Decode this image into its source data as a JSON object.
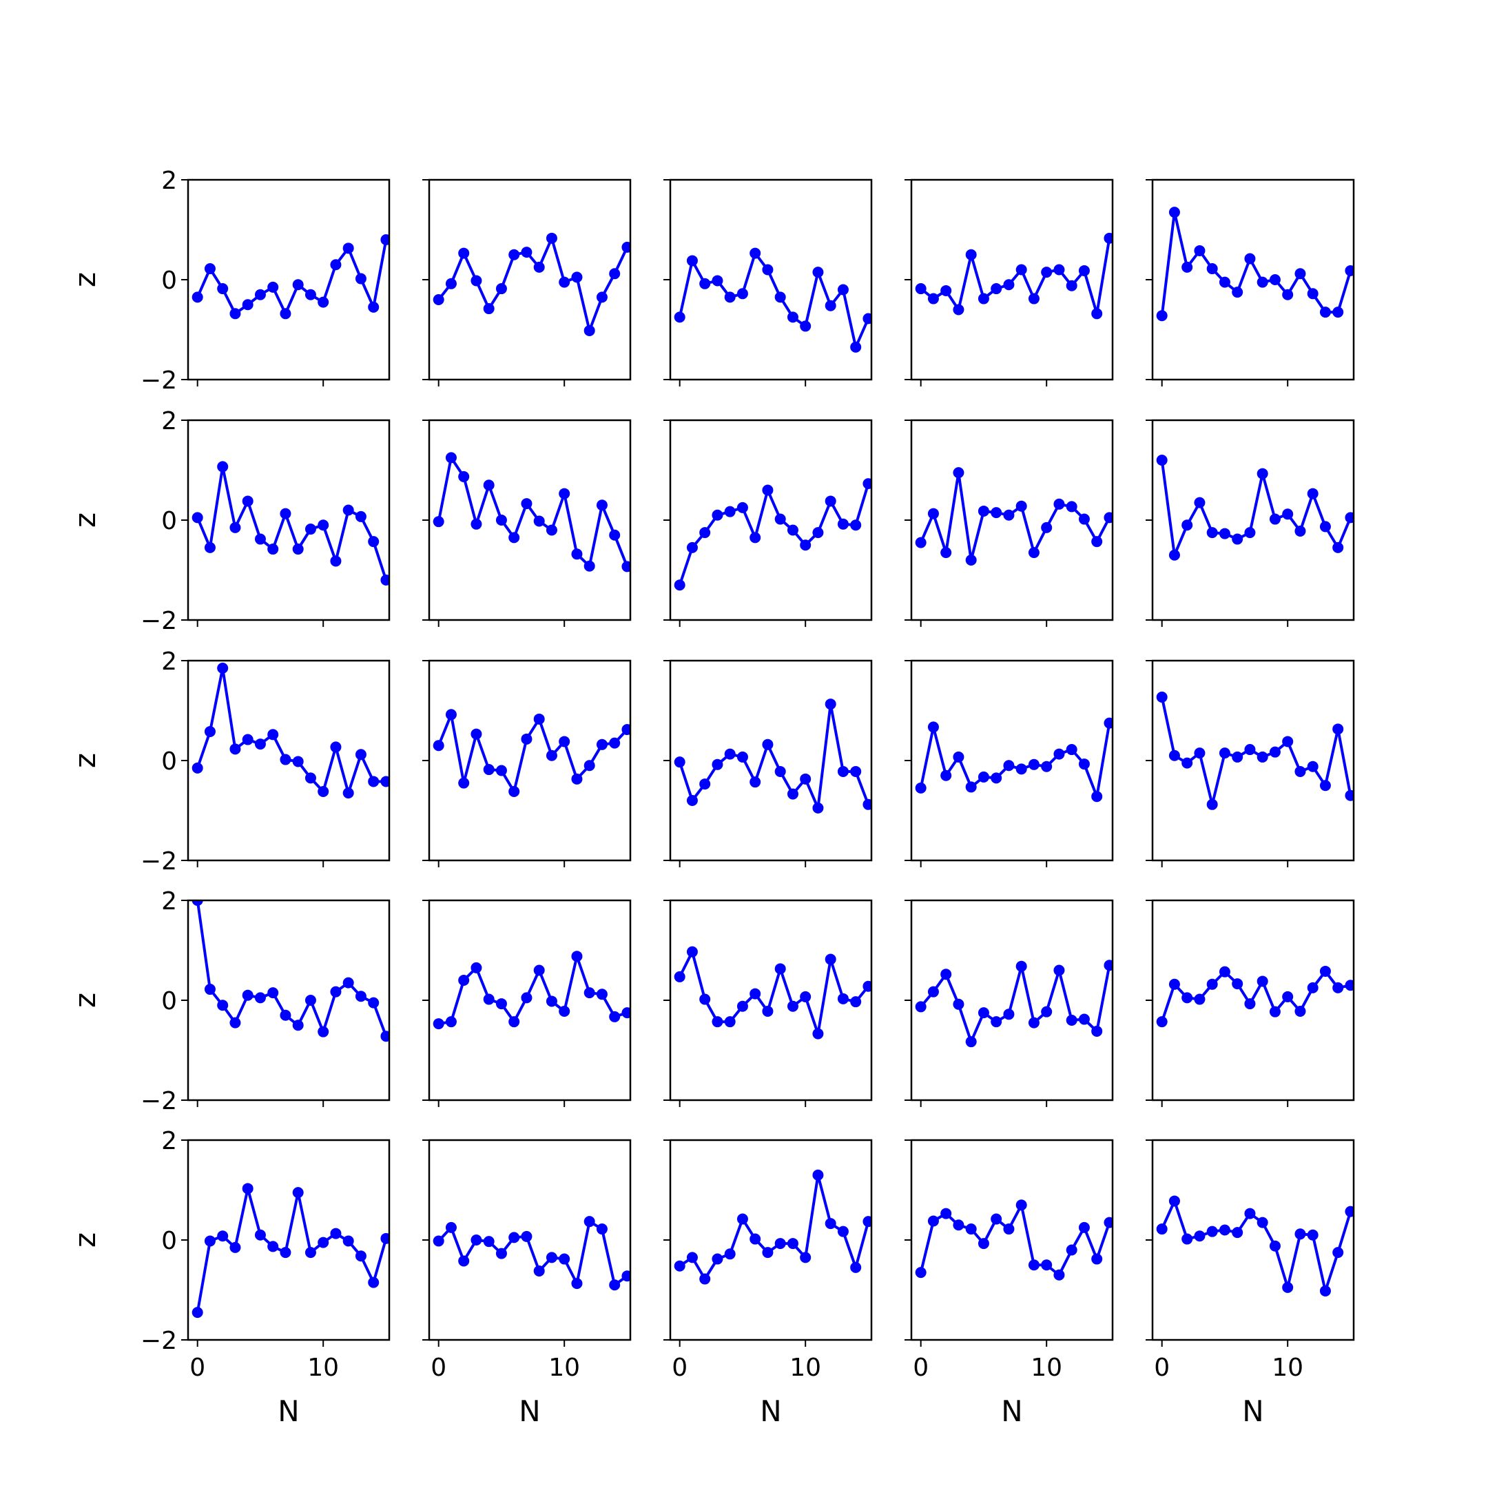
{
  "chart_data": {
    "type": "line",
    "layout": "5x5 grid of subplots",
    "xlabel": "N",
    "ylabel": "z",
    "xlim": [
      -0.75,
      15.25
    ],
    "ylim": [
      -2,
      2
    ],
    "yticks": [
      -2,
      0,
      2
    ],
    "ytick_labels": [
      "−2",
      "0",
      "2"
    ],
    "xticks": [
      0,
      10
    ],
    "xtick_labels": [
      "0",
      "10"
    ],
    "line_color": "#0000ff",
    "marker": "circle",
    "x": [
      0,
      1,
      2,
      3,
      4,
      5,
      6,
      7,
      8,
      9,
      10,
      11,
      12,
      13,
      14,
      15
    ],
    "panels": [
      {
        "row": 1,
        "col": 1,
        "values": [
          -0.35,
          0.22,
          -0.18,
          -0.68,
          -0.5,
          -0.3,
          -0.15,
          -0.68,
          -0.1,
          -0.3,
          -0.45,
          0.3,
          0.63,
          0.02,
          -0.55,
          0.8
        ]
      },
      {
        "row": 1,
        "col": 2,
        "values": [
          -0.4,
          -0.08,
          0.53,
          -0.02,
          -0.58,
          -0.18,
          0.5,
          0.55,
          0.25,
          0.83,
          -0.05,
          0.05,
          -1.02,
          -0.35,
          0.12,
          0.65
        ]
      },
      {
        "row": 1,
        "col": 3,
        "values": [
          -0.75,
          0.38,
          -0.08,
          -0.02,
          -0.35,
          -0.28,
          0.53,
          0.2,
          -0.35,
          -0.75,
          -0.93,
          0.15,
          -0.52,
          -0.2,
          -1.35,
          -0.78
        ]
      },
      {
        "row": 1,
        "col": 4,
        "values": [
          -0.18,
          -0.38,
          -0.22,
          -0.6,
          0.5,
          -0.38,
          -0.18,
          -0.1,
          0.2,
          -0.38,
          0.15,
          0.2,
          -0.12,
          0.18,
          -0.68,
          0.83
        ]
      },
      {
        "row": 1,
        "col": 5,
        "values": [
          -0.72,
          1.35,
          0.25,
          0.58,
          0.22,
          -0.05,
          -0.25,
          0.42,
          -0.05,
          0.0,
          -0.3,
          0.12,
          -0.28,
          -0.65,
          -0.65,
          0.18
        ]
      },
      {
        "row": 2,
        "col": 1,
        "values": [
          0.05,
          -0.55,
          1.07,
          -0.15,
          0.38,
          -0.38,
          -0.58,
          0.13,
          -0.58,
          -0.18,
          -0.1,
          -0.82,
          0.2,
          0.07,
          -0.43,
          -1.2
        ]
      },
      {
        "row": 2,
        "col": 2,
        "values": [
          -0.03,
          1.25,
          0.87,
          -0.08,
          0.7,
          0.0,
          -0.35,
          0.33,
          -0.02,
          -0.2,
          0.53,
          -0.68,
          -0.92,
          0.3,
          -0.3,
          -0.93
        ]
      },
      {
        "row": 2,
        "col": 3,
        "values": [
          -1.3,
          -0.55,
          -0.25,
          0.1,
          0.17,
          0.25,
          -0.35,
          0.6,
          0.02,
          -0.2,
          -0.5,
          -0.25,
          0.38,
          -0.08,
          -0.1,
          0.73
        ]
      },
      {
        "row": 2,
        "col": 4,
        "values": [
          -0.45,
          0.13,
          -0.65,
          0.95,
          -0.8,
          0.18,
          0.15,
          0.1,
          0.28,
          -0.65,
          -0.15,
          0.32,
          0.27,
          0.02,
          -0.43,
          0.05
        ]
      },
      {
        "row": 2,
        "col": 5,
        "values": [
          1.2,
          -0.7,
          -0.1,
          0.35,
          -0.25,
          -0.27,
          -0.38,
          -0.25,
          0.93,
          0.02,
          0.12,
          -0.22,
          0.53,
          -0.13,
          -0.55,
          0.05
        ]
      },
      {
        "row": 3,
        "col": 1,
        "values": [
          -0.15,
          0.58,
          1.85,
          0.23,
          0.42,
          0.33,
          0.52,
          0.02,
          -0.02,
          -0.35,
          -0.62,
          0.27,
          -0.65,
          0.12,
          -0.42,
          -0.42
        ]
      },
      {
        "row": 3,
        "col": 2,
        "values": [
          0.3,
          0.92,
          -0.45,
          0.53,
          -0.18,
          -0.2,
          -0.62,
          0.43,
          0.83,
          0.1,
          0.38,
          -0.37,
          -0.1,
          0.32,
          0.35,
          0.62
        ]
      },
      {
        "row": 3,
        "col": 3,
        "values": [
          -0.03,
          -0.8,
          -0.47,
          -0.08,
          0.13,
          0.07,
          -0.43,
          0.32,
          -0.22,
          -0.67,
          -0.37,
          -0.95,
          1.13,
          -0.22,
          -0.22,
          -0.88
        ]
      },
      {
        "row": 3,
        "col": 4,
        "values": [
          -0.55,
          0.67,
          -0.3,
          0.07,
          -0.53,
          -0.33,
          -0.35,
          -0.1,
          -0.17,
          -0.08,
          -0.12,
          0.13,
          0.22,
          -0.07,
          -0.72,
          0.75
        ]
      },
      {
        "row": 3,
        "col": 5,
        "values": [
          1.27,
          0.1,
          -0.05,
          0.15,
          -0.88,
          0.15,
          0.07,
          0.22,
          0.07,
          0.17,
          0.38,
          -0.22,
          -0.12,
          -0.5,
          0.63,
          -0.7
        ]
      },
      {
        "row": 4,
        "col": 1,
        "values": [
          2.0,
          0.22,
          -0.1,
          -0.45,
          0.1,
          0.05,
          0.15,
          -0.3,
          -0.5,
          0.0,
          -0.63,
          0.17,
          0.35,
          0.08,
          -0.05,
          -0.72
        ]
      },
      {
        "row": 4,
        "col": 2,
        "values": [
          -0.47,
          -0.43,
          0.4,
          0.65,
          0.02,
          -0.07,
          -0.43,
          0.05,
          0.6,
          -0.02,
          -0.22,
          0.88,
          0.15,
          0.12,
          -0.33,
          -0.25
        ]
      },
      {
        "row": 4,
        "col": 3,
        "values": [
          0.47,
          0.97,
          0.02,
          -0.43,
          -0.43,
          -0.12,
          0.13,
          -0.22,
          0.63,
          -0.12,
          0.07,
          -0.67,
          0.82,
          0.03,
          -0.03,
          0.28
        ]
      },
      {
        "row": 4,
        "col": 4,
        "values": [
          -0.13,
          0.17,
          0.52,
          -0.08,
          -0.83,
          -0.25,
          -0.43,
          -0.28,
          0.68,
          -0.45,
          -0.23,
          0.6,
          -0.4,
          -0.38,
          -0.62,
          0.7
        ]
      },
      {
        "row": 4,
        "col": 5,
        "values": [
          -0.43,
          0.32,
          0.05,
          0.02,
          0.32,
          0.57,
          0.33,
          -0.07,
          0.38,
          -0.23,
          0.07,
          -0.22,
          0.25,
          0.58,
          0.25,
          0.3
        ]
      },
      {
        "row": 5,
        "col": 1,
        "values": [
          -1.45,
          -0.02,
          0.08,
          -0.15,
          1.03,
          0.1,
          -0.13,
          -0.25,
          0.95,
          -0.25,
          -0.05,
          0.13,
          -0.02,
          -0.32,
          -0.85,
          0.03
        ]
      },
      {
        "row": 5,
        "col": 2,
        "values": [
          -0.02,
          0.25,
          -0.42,
          0.0,
          -0.03,
          -0.27,
          0.05,
          0.07,
          -0.62,
          -0.35,
          -0.38,
          -0.87,
          0.37,
          0.22,
          -0.9,
          -0.72
        ]
      },
      {
        "row": 5,
        "col": 3,
        "values": [
          -0.52,
          -0.35,
          -0.78,
          -0.38,
          -0.28,
          0.42,
          0.02,
          -0.25,
          -0.07,
          -0.07,
          -0.35,
          1.3,
          0.33,
          0.17,
          -0.55,
          0.37
        ]
      },
      {
        "row": 5,
        "col": 4,
        "values": [
          -0.65,
          0.38,
          0.53,
          0.3,
          0.22,
          -0.07,
          0.42,
          0.22,
          0.7,
          -0.5,
          -0.5,
          -0.7,
          -0.2,
          0.25,
          -0.38,
          0.35
        ]
      },
      {
        "row": 5,
        "col": 5,
        "values": [
          0.22,
          0.78,
          0.02,
          0.08,
          0.17,
          0.2,
          0.15,
          0.53,
          0.35,
          -0.12,
          -0.95,
          0.12,
          0.1,
          -1.02,
          -0.25,
          0.57
        ]
      }
    ]
  }
}
